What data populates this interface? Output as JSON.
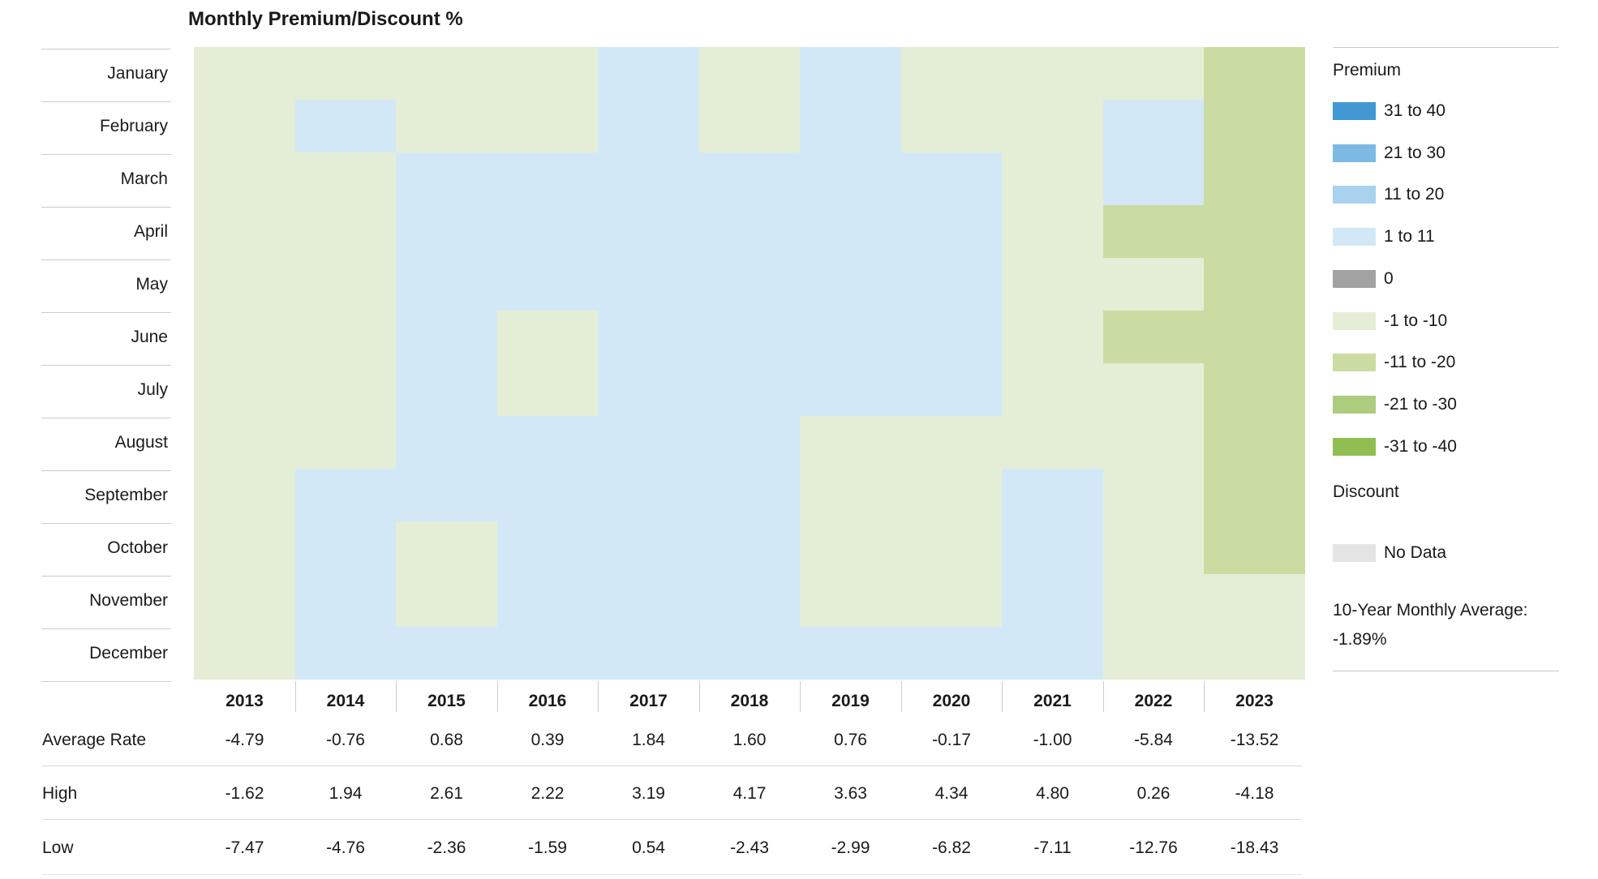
{
  "chart_data": {
    "type": "heatmap",
    "title": "Monthly Premium/Discount %",
    "x_labels": [
      "2013",
      "2014",
      "2015",
      "2016",
      "2017",
      "2018",
      "2019",
      "2020",
      "2021",
      "2022",
      "2023"
    ],
    "y_labels": [
      "January",
      "February",
      "March",
      "April",
      "May",
      "June",
      "July",
      "August",
      "September",
      "October",
      "November",
      "December"
    ],
    "cells": [
      [
        "-1 to -10",
        "-1 to -10",
        "-1 to -10",
        "-1 to -10",
        "1 to 11",
        "-1 to -10",
        "1 to 11",
        "-1 to -10",
        "-1 to -10",
        "-1 to -10",
        "-11 to -20"
      ],
      [
        "-1 to -10",
        "1 to 11",
        "-1 to -10",
        "-1 to -10",
        "1 to 11",
        "-1 to -10",
        "1 to 11",
        "-1 to -10",
        "-1 to -10",
        "1 to 11",
        "-11 to -20"
      ],
      [
        "-1 to -10",
        "-1 to -10",
        "1 to 11",
        "1 to 11",
        "1 to 11",
        "1 to 11",
        "1 to 11",
        "1 to 11",
        "-1 to -10",
        "1 to 11",
        "-11 to -20"
      ],
      [
        "-1 to -10",
        "-1 to -10",
        "1 to 11",
        "1 to 11",
        "1 to 11",
        "1 to 11",
        "1 to 11",
        "1 to 11",
        "-1 to -10",
        "-11 to -20",
        "-11 to -20"
      ],
      [
        "-1 to -10",
        "-1 to -10",
        "1 to 11",
        "1 to 11",
        "1 to 11",
        "1 to 11",
        "1 to 11",
        "1 to 11",
        "-1 to -10",
        "-1 to -10",
        "-11 to -20"
      ],
      [
        "-1 to -10",
        "-1 to -10",
        "1 to 11",
        "-1 to -10",
        "1 to 11",
        "1 to 11",
        "1 to 11",
        "1 to 11",
        "-1 to -10",
        "-11 to -20",
        "-11 to -20"
      ],
      [
        "-1 to -10",
        "-1 to -10",
        "1 to 11",
        "-1 to -10",
        "1 to 11",
        "1 to 11",
        "1 to 11",
        "1 to 11",
        "-1 to -10",
        "-1 to -10",
        "-11 to -20"
      ],
      [
        "-1 to -10",
        "-1 to -10",
        "1 to 11",
        "1 to 11",
        "1 to 11",
        "1 to 11",
        "-1 to -10",
        "-1 to -10",
        "-1 to -10",
        "-1 to -10",
        "-11 to -20"
      ],
      [
        "-1 to -10",
        "1 to 11",
        "1 to 11",
        "1 to 11",
        "1 to 11",
        "1 to 11",
        "-1 to -10",
        "-1 to -10",
        "1 to 11",
        "-1 to -10",
        "-11 to -20"
      ],
      [
        "-1 to -10",
        "1 to 11",
        "-1 to -10",
        "1 to 11",
        "1 to 11",
        "1 to 11",
        "-1 to -10",
        "-1 to -10",
        "1 to 11",
        "-1 to -10",
        "-11 to -20"
      ],
      [
        "-1 to -10",
        "1 to 11",
        "-1 to -10",
        "1 to 11",
        "1 to 11",
        "1 to 11",
        "-1 to -10",
        "-1 to -10",
        "1 to 11",
        "-1 to -10",
        "-1 to -10"
      ],
      [
        "-1 to -10",
        "1 to 11",
        "1 to 11",
        "1 to 11",
        "1 to 11",
        "1 to 11",
        "1 to 11",
        "1 to 11",
        "1 to 11",
        "-1 to -10",
        "-1 to -10"
      ]
    ],
    "summary_table": {
      "rows": [
        {
          "label": "Average Rate",
          "values": [
            "-4.79",
            "-0.76",
            "0.68",
            "0.39",
            "1.84",
            "1.60",
            "0.76",
            "-0.17",
            "-1.00",
            "-5.84",
            "-13.52"
          ]
        },
        {
          "label": "High",
          "values": [
            "-1.62",
            "1.94",
            "2.61",
            "2.22",
            "3.19",
            "4.17",
            "3.63",
            "4.34",
            "4.80",
            "0.26",
            "-4.18"
          ]
        },
        {
          "label": "Low",
          "values": [
            "-7.47",
            "-4.76",
            "-2.36",
            "-1.59",
            "0.54",
            "-2.43",
            "-2.99",
            "-6.82",
            "-7.11",
            "-12.76",
            "-18.43"
          ]
        }
      ]
    }
  },
  "legend": {
    "premium_label": "Premium",
    "discount_label": "Discount",
    "no_data_label": "No Data",
    "no_data_color": "#E4E4E4",
    "average_note_line1": "10-Year Monthly Average:",
    "average_note_line2": "-1.89%",
    "buckets": [
      {
        "label": "31 to 40",
        "color": "#4198D3"
      },
      {
        "label": "21 to 30",
        "color": "#7CBAE3"
      },
      {
        "label": "11 to 20",
        "color": "#A9D2EE"
      },
      {
        "label": "1 to 11",
        "color": "#D2E8F6"
      },
      {
        "label": "0",
        "color": "#A2A2A2"
      },
      {
        "label": "-1 to -10",
        "color": "#E4EED6"
      },
      {
        "label": "-11 to -20",
        "color": "#CBDCA2"
      },
      {
        "label": "-21 to -30",
        "color": "#ACCC7E"
      },
      {
        "label": "-31 to -40",
        "color": "#91BE51"
      }
    ]
  }
}
